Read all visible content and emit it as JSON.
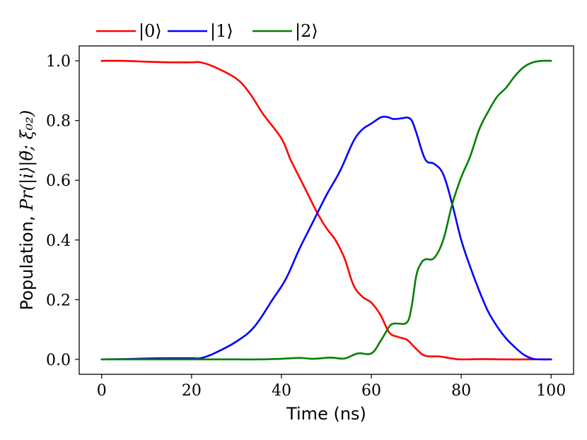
{
  "chart_data": {
    "type": "line",
    "title": "",
    "xlabel": "Time (ns)",
    "ylabel": "Population, Pr(|i⟩|θ̃; ξ₀₂)",
    "ylabel_prefix": "Population, ",
    "ylabel_math": "Pr(|i⟩|θ̃; ξ₀₂)",
    "xlim": [
      -5,
      105
    ],
    "ylim": [
      -0.05,
      1.05
    ],
    "xticks": [
      0,
      20,
      40,
      60,
      80,
      100
    ],
    "xtick_labels": [
      "0",
      "20",
      "40",
      "60",
      "80",
      "100"
    ],
    "yticks": [
      0.0,
      0.2,
      0.4,
      0.6,
      0.8,
      1.0
    ],
    "ytick_labels": [
      "0.0",
      "0.2",
      "0.4",
      "0.6",
      "0.8",
      "1.0"
    ],
    "grid": false,
    "legend_position": "top-left-outside",
    "series": [
      {
        "name": "|0⟩",
        "color": "#ff0000",
        "x": [
          0,
          5,
          10,
          15,
          20,
          22,
          25,
          30,
          33,
          36,
          40,
          42,
          44,
          46,
          48,
          50,
          52,
          54,
          56,
          58,
          60,
          62,
          64,
          66,
          68,
          70,
          72,
          75,
          78,
          80,
          85,
          90,
          95,
          100
        ],
        "values": [
          1.0,
          1.0,
          0.997,
          0.995,
          0.995,
          0.995,
          0.98,
          0.94,
          0.89,
          0.82,
          0.74,
          0.67,
          0.61,
          0.55,
          0.49,
          0.44,
          0.4,
          0.34,
          0.25,
          0.21,
          0.19,
          0.15,
          0.09,
          0.075,
          0.065,
          0.035,
          0.012,
          0.01,
          0.003,
          0.0,
          0.001,
          0.0,
          0.0,
          0.0
        ]
      },
      {
        "name": "|1⟩",
        "color": "#0000ff",
        "x": [
          0,
          5,
          10,
          15,
          20,
          22,
          25,
          30,
          34,
          38,
          41,
          44,
          47,
          50,
          53,
          56,
          58,
          60,
          62,
          63,
          64,
          65,
          67,
          68,
          69,
          70,
          72,
          74,
          76,
          78,
          80,
          82,
          84,
          86,
          88,
          90,
          92,
          94,
          96,
          98,
          100
        ],
        "values": [
          0.0,
          0.001,
          0.003,
          0.004,
          0.004,
          0.004,
          0.02,
          0.06,
          0.11,
          0.2,
          0.27,
          0.37,
          0.46,
          0.55,
          0.63,
          0.73,
          0.77,
          0.79,
          0.81,
          0.813,
          0.81,
          0.805,
          0.808,
          0.81,
          0.8,
          0.76,
          0.67,
          0.655,
          0.62,
          0.52,
          0.4,
          0.31,
          0.23,
          0.16,
          0.11,
          0.07,
          0.04,
          0.015,
          0.002,
          0.0,
          0.0
        ]
      },
      {
        "name": "|2⟩",
        "color": "#008000",
        "x": [
          0,
          10,
          20,
          30,
          35,
          40,
          44,
          47,
          51,
          54,
          57,
          60,
          62,
          64,
          65,
          66,
          68,
          69,
          70,
          71,
          72,
          74,
          76,
          78,
          80,
          82,
          84,
          86,
          88,
          90,
          92,
          94,
          96,
          98,
          100
        ],
        "values": [
          0.0,
          0.0,
          0.0,
          0.0,
          0.0,
          0.002,
          0.005,
          0.002,
          0.006,
          0.003,
          0.02,
          0.02,
          0.06,
          0.11,
          0.12,
          0.12,
          0.125,
          0.18,
          0.28,
          0.32,
          0.335,
          0.34,
          0.4,
          0.52,
          0.61,
          0.68,
          0.77,
          0.83,
          0.88,
          0.91,
          0.95,
          0.98,
          0.995,
          1.0,
          1.0
        ]
      }
    ]
  }
}
